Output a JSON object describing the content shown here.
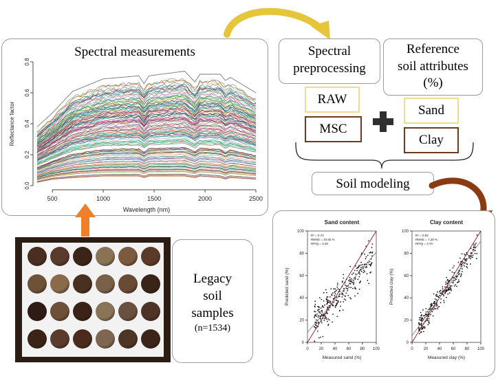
{
  "spectral_panel": {
    "title": "Spectral  measurements",
    "x_axis_label": "Wavelength (nm)",
    "y_axis_label": "Reflectance factor",
    "x_ticks": [
      "500",
      "1000",
      "1500",
      "2000",
      "2500"
    ],
    "y_ticks": [
      "0.0",
      "0.2",
      "0.4",
      "0.6",
      "0.8"
    ]
  },
  "preprocessing": {
    "title_line1": "Spectral",
    "title_line2": "preprocessing",
    "raw_label": "RAW",
    "msc_label": "MSC"
  },
  "reference": {
    "title_line1": "Reference",
    "title_line2": "soil attributes",
    "title_line3": "(%)",
    "sand_label": "Sand",
    "clay_label": "Clay"
  },
  "plus_symbol": "+",
  "modeling": {
    "label": "Soil modeling"
  },
  "legacy": {
    "line1": "Legacy",
    "line2": "soil",
    "line3": "samples",
    "line4": "(n=1534)"
  },
  "colors": {
    "arrow_yellow": "#e7c53a",
    "arrow_orange": "#f07f2b",
    "arrow_brown": "#8b3b12",
    "box_yellow": "#f0dc8c",
    "box_brown": "#6b3a22",
    "fit_line": "#8b1a1a"
  },
  "chart_data": [
    {
      "type": "line",
      "title": "Spectral  measurements",
      "xlabel": "Wavelength (nm)",
      "ylabel": "Reflectance factor",
      "xlim": [
        350,
        2500
      ],
      "ylim": [
        0.0,
        0.8
      ],
      "series_note": "1534 reflectance spectra",
      "envelope": {
        "x": [
          350,
          500,
          700,
          1000,
          1350,
          1400,
          1450,
          1800,
          1900,
          1950,
          2150,
          2200,
          2250,
          2500
        ],
        "max": [
          0.37,
          0.46,
          0.6,
          0.68,
          0.7,
          0.65,
          0.7,
          0.73,
          0.66,
          0.71,
          0.71,
          0.67,
          0.69,
          0.59
        ],
        "min": [
          0.02,
          0.04,
          0.05,
          0.06,
          0.06,
          0.05,
          0.06,
          0.06,
          0.05,
          0.06,
          0.05,
          0.04,
          0.05,
          0.04
        ]
      }
    },
    {
      "type": "scatter",
      "title": "Sand content",
      "xlabel": "Measured sand (%)",
      "ylabel": "Predicted sand (%)",
      "xlim": [
        0,
        100
      ],
      "ylim": [
        0,
        100
      ],
      "ticks": [
        "0",
        "20",
        "40",
        "60",
        "80",
        "100"
      ],
      "stats": [
        "R² = 0.73",
        "RMSE = 10.60 %",
        "RPIQ = 3.36"
      ],
      "fit": {
        "slope": 0.72,
        "intercept": 9
      }
    },
    {
      "type": "scatter",
      "title": "Clay content",
      "xlabel": "Measured clay (%)",
      "ylabel": "Predicted clay (%)",
      "xlim": [
        0,
        100
      ],
      "ylim": [
        0,
        100
      ],
      "ticks": [
        "0",
        "20",
        "40",
        "60",
        "80",
        "100"
      ],
      "stats": [
        "R² = 0.83",
        "RMSE = 7.28 %",
        "RPIQ = 3.70"
      ],
      "fit": {
        "slope": 0.85,
        "intercept": 6
      }
    }
  ]
}
